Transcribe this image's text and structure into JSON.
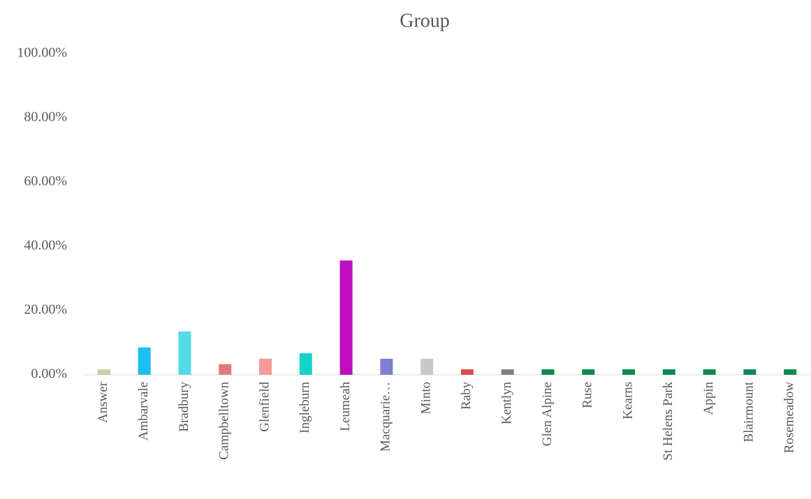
{
  "chart_data": {
    "type": "bar",
    "title": "Group",
    "categories": [
      "Answer",
      "Ambarvale",
      "Bradbury",
      "Campbelltown",
      "Glenfield",
      "Ingleburn",
      "Leumeah",
      "Macquarie…",
      "Minto",
      "Raby",
      "Kentlyn",
      "Glen Alpine",
      "Ruse",
      "Kearns",
      "St Helens Park",
      "Appin",
      "Blairmount",
      "Rosemeadow"
    ],
    "values": [
      1.7,
      8.5,
      13.5,
      3.3,
      5.0,
      6.7,
      35.6,
      5.0,
      5.0,
      1.7,
      1.7,
      1.7,
      1.7,
      1.7,
      1.7,
      1.7,
      1.7,
      1.7
    ],
    "colors": [
      "#c9d1b0",
      "#1bbff0",
      "#56d9e8",
      "#e07b7b",
      "#f59a9a",
      "#16d1cc",
      "#bd0fbd",
      "#8080d0",
      "#c8c8c8",
      "#d94a4a",
      "#808080",
      "#0a8a50",
      "#0a8a50",
      "#0a8a50",
      "#0a8a50",
      "#0a8a50",
      "#0a8a50",
      "#0a8a50"
    ],
    "ylim": [
      0,
      100
    ],
    "yticks": [
      {
        "value": 0,
        "label": "0.00%"
      },
      {
        "value": 20,
        "label": "20.00%"
      },
      {
        "value": 40,
        "label": "40.00%"
      },
      {
        "value": 60,
        "label": "60.00%"
      },
      {
        "value": 80,
        "label": "80.00%"
      },
      {
        "value": 100,
        "label": "100.00%"
      }
    ],
    "grid": false
  }
}
